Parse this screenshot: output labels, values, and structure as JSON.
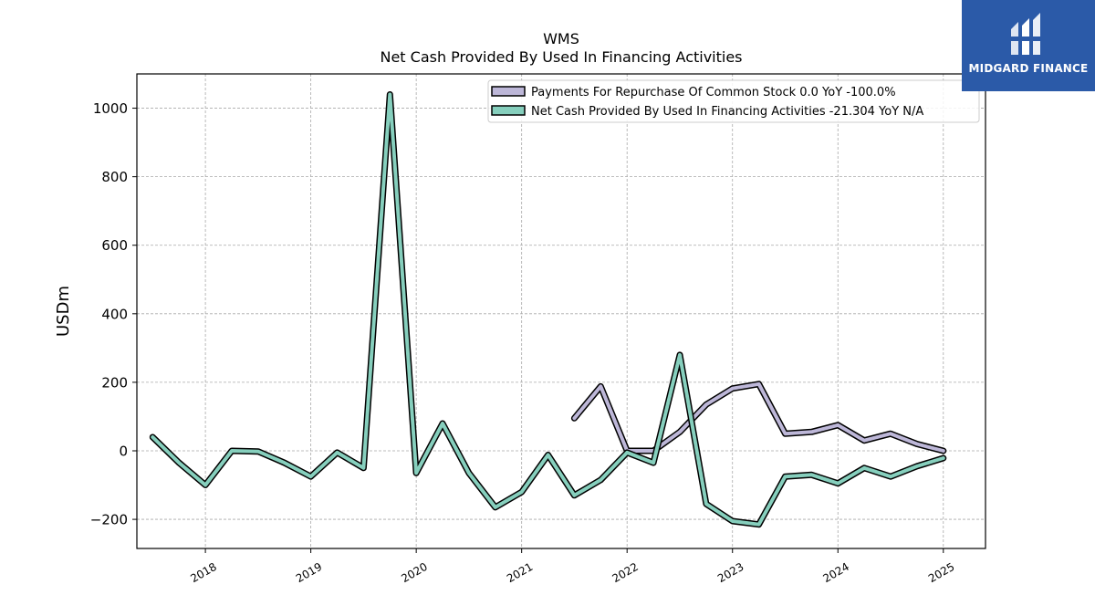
{
  "brand": {
    "name": "MIDGARD FINANCE",
    "bg_color": "#2b5aa8"
  },
  "chart_data": {
    "type": "line",
    "title": "WMS",
    "subtitle": "Net Cash Provided By Used In Financing Activities",
    "ylabel": "USDm",
    "xlabel": "",
    "ylim": [
      -285,
      1100
    ],
    "xlim": [
      2017.35,
      2025.4
    ],
    "yticks": [
      -200,
      0,
      200,
      400,
      600,
      800,
      1000
    ],
    "xticks": [
      2018,
      2019,
      2020,
      2021,
      2022,
      2023,
      2024,
      2025
    ],
    "grid": true,
    "legend_position": "top-right",
    "series": [
      {
        "name": "Payments For Repurchase Of Common Stock  0.0 YoY -100.0%",
        "color": "#bdb7d8",
        "x": [
          2021.5,
          2021.75,
          2022.0,
          2022.25,
          2022.5,
          2022.75,
          2023.0,
          2023.25,
          2023.5,
          2023.75,
          2024.0,
          2024.25,
          2024.5,
          2024.75,
          2025.0
        ],
        "y": [
          95,
          188,
          0,
          0,
          55,
          135,
          182,
          195,
          50,
          55,
          75,
          30,
          50,
          20,
          0
        ]
      },
      {
        "name": "Net Cash Provided By Used In Financing Activities  -21.304 YoY N/A",
        "color": "#86cfbd",
        "x": [
          2017.5,
          2017.75,
          2018.0,
          2018.25,
          2018.5,
          2018.75,
          2019.0,
          2019.25,
          2019.5,
          2019.75,
          2020.0,
          2020.25,
          2020.5,
          2020.75,
          2021.0,
          2021.25,
          2021.5,
          2021.75,
          2022.0,
          2022.25,
          2022.5,
          2022.75,
          2023.0,
          2023.25,
          2023.5,
          2023.75,
          2024.0,
          2024.25,
          2024.5,
          2024.75,
          2025.0
        ],
        "y": [
          40,
          -35,
          -100,
          0,
          -2,
          -35,
          -75,
          -5,
          -50,
          1040,
          -65,
          80,
          -65,
          -165,
          -120,
          -12,
          -130,
          -85,
          -5,
          -35,
          280,
          -155,
          -205,
          -215,
          -75,
          -70,
          -95,
          -50,
          -75,
          -45,
          -21.304
        ]
      }
    ]
  }
}
